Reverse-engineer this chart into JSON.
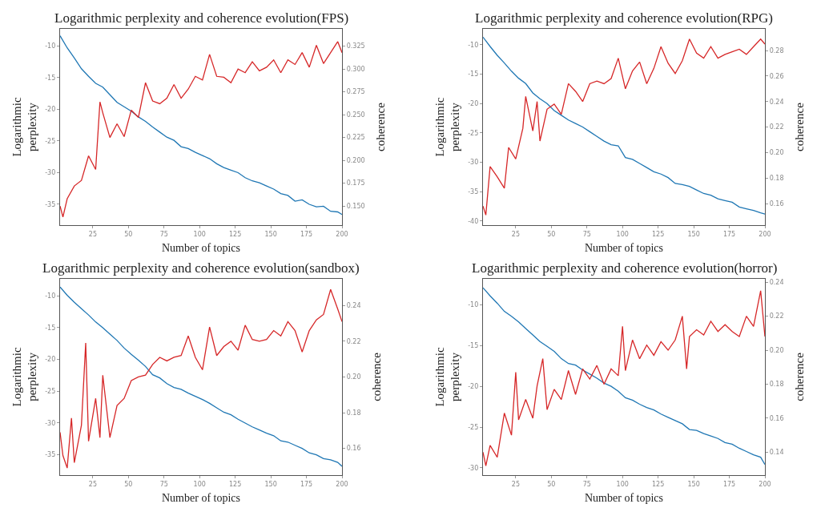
{
  "chart_data": [
    {
      "type": "line",
      "title": "Logarithmic perplexity and coherence evolution(FPS)",
      "xlabel": "Number of topics",
      "ylabel": "Logarithmic\nperplexity",
      "y2label": "coherence",
      "xlim": [
        2,
        200
      ],
      "xticks": [
        25,
        50,
        75,
        100,
        125,
        150,
        175,
        200
      ],
      "ylim": [
        -38.3,
        -7.3
      ],
      "yticks": [
        -35,
        -30,
        -25,
        -20,
        -15,
        -10
      ],
      "y2lim": [
        0.129,
        0.344
      ],
      "y2ticks": [
        {
          "value": 0.15,
          "label": "0.150"
        },
        {
          "value": 0.175,
          "label": "0.175"
        },
        {
          "value": 0.2,
          "label": "0.200"
        },
        {
          "value": 0.225,
          "label": "0.225"
        },
        {
          "value": 0.25,
          "label": "0.250"
        },
        {
          "value": 0.275,
          "label": "0.275"
        },
        {
          "value": 0.3,
          "label": "0.300"
        },
        {
          "value": 0.325,
          "label": "0.325"
        }
      ],
      "marker": "none",
      "line_style": "solid",
      "series": [
        {
          "color": "#1f77b4",
          "axis": "y",
          "x": [
            2,
            7,
            12,
            17,
            22,
            27,
            32,
            37,
            42,
            47,
            52,
            57,
            62,
            67,
            72,
            77,
            82,
            87,
            92,
            97,
            102,
            107,
            112,
            117,
            122,
            127,
            132,
            137,
            142,
            147,
            152,
            157,
            162,
            167,
            172,
            177,
            182,
            187,
            192,
            197,
            200
          ],
          "values": [
            -8.4,
            -10.3,
            -11.9,
            -13.6,
            -14.8,
            -15.9,
            -16.5,
            -17.7,
            -18.9,
            -19.6,
            -20.3,
            -21.2,
            -21.9,
            -22.8,
            -23.6,
            -24.4,
            -24.9,
            -25.9,
            -26.2,
            -26.8,
            -27.3,
            -27.8,
            -28.6,
            -29.2,
            -29.6,
            -30.0,
            -30.8,
            -31.3,
            -31.6,
            -32.1,
            -32.6,
            -33.3,
            -33.6,
            -34.5,
            -34.3,
            -35.0,
            -35.4,
            -35.3,
            -36.1,
            -36.2,
            -36.6
          ]
        },
        {
          "color": "#d62728",
          "axis": "y2",
          "x": [
            2,
            4,
            7,
            12,
            17,
            22,
            27,
            30,
            32,
            37,
            42,
            47,
            52,
            57,
            62,
            67,
            72,
            77,
            82,
            87,
            92,
            97,
            102,
            107,
            112,
            117,
            122,
            127,
            132,
            137,
            142,
            147,
            152,
            157,
            162,
            167,
            172,
            177,
            182,
            187,
            192,
            197,
            200
          ],
          "values": [
            0.15,
            0.138,
            0.158,
            0.172,
            0.178,
            0.205,
            0.19,
            0.264,
            0.252,
            0.225,
            0.24,
            0.226,
            0.255,
            0.247,
            0.285,
            0.265,
            0.262,
            0.268,
            0.283,
            0.268,
            0.278,
            0.292,
            0.288,
            0.316,
            0.292,
            0.291,
            0.285,
            0.3,
            0.296,
            0.308,
            0.298,
            0.302,
            0.31,
            0.296,
            0.31,
            0.305,
            0.318,
            0.302,
            0.326,
            0.306,
            0.318,
            0.33,
            0.318
          ]
        }
      ]
    },
    {
      "type": "line",
      "title": "Logarithmic perplexity and coherence evolution(RPG)",
      "xlabel": "Number of topics",
      "ylabel": "Logarithmic\nperplexity",
      "y2label": "coherence",
      "xlim": [
        2,
        200
      ],
      "xticks": [
        25,
        50,
        75,
        100,
        125,
        150,
        175,
        200
      ],
      "ylim": [
        -40.7,
        -7.3
      ],
      "yticks": [
        -40,
        -35,
        -30,
        -25,
        -20,
        -15,
        -10
      ],
      "y2lim": [
        0.143,
        0.297
      ],
      "y2ticks": [
        {
          "value": 0.16,
          "label": "0.16"
        },
        {
          "value": 0.18,
          "label": "0.18"
        },
        {
          "value": 0.2,
          "label": "0.20"
        },
        {
          "value": 0.22,
          "label": "0.22"
        },
        {
          "value": 0.24,
          "label": "0.24"
        },
        {
          "value": 0.26,
          "label": "0.26"
        },
        {
          "value": 0.28,
          "label": "0.28"
        }
      ],
      "marker": "none",
      "line_style": "solid",
      "series": [
        {
          "color": "#1f77b4",
          "axis": "y",
          "x": [
            2,
            7,
            12,
            17,
            22,
            27,
            32,
            37,
            42,
            47,
            52,
            57,
            62,
            67,
            72,
            77,
            82,
            87,
            92,
            97,
            102,
            107,
            112,
            117,
            122,
            127,
            132,
            137,
            142,
            147,
            152,
            157,
            162,
            167,
            172,
            177,
            182,
            187,
            192,
            197,
            200
          ],
          "values": [
            -8.7,
            -10.3,
            -11.8,
            -13.1,
            -14.5,
            -15.7,
            -16.6,
            -18.2,
            -19.2,
            -20.0,
            -21.2,
            -22.0,
            -22.8,
            -23.4,
            -24.0,
            -24.8,
            -25.6,
            -26.4,
            -27.0,
            -27.2,
            -29.2,
            -29.5,
            -30.2,
            -30.9,
            -31.6,
            -32.0,
            -32.6,
            -33.6,
            -33.8,
            -34.1,
            -34.7,
            -35.3,
            -35.6,
            -36.2,
            -36.5,
            -36.8,
            -37.6,
            -37.9,
            -38.2,
            -38.6,
            -38.8
          ]
        },
        {
          "color": "#d62728",
          "axis": "y2",
          "x": [
            2,
            4,
            7,
            12,
            17,
            20,
            25,
            30,
            32,
            37,
            40,
            42,
            47,
            52,
            57,
            62,
            67,
            72,
            77,
            82,
            87,
            92,
            97,
            102,
            107,
            112,
            117,
            122,
            127,
            132,
            137,
            142,
            147,
            152,
            157,
            162,
            167,
            172,
            177,
            182,
            187,
            192,
            197,
            200
          ],
          "values": [
            0.158,
            0.151,
            0.189,
            0.181,
            0.172,
            0.204,
            0.195,
            0.219,
            0.244,
            0.217,
            0.24,
            0.209,
            0.234,
            0.238,
            0.23,
            0.254,
            0.248,
            0.24,
            0.254,
            0.256,
            0.254,
            0.258,
            0.274,
            0.25,
            0.264,
            0.271,
            0.254,
            0.266,
            0.283,
            0.27,
            0.262,
            0.272,
            0.289,
            0.278,
            0.274,
            0.283,
            0.274,
            0.277,
            0.279,
            0.281,
            0.277,
            0.283,
            0.289,
            0.285
          ]
        }
      ]
    },
    {
      "type": "line",
      "title": "Logarithmic perplexity and coherence evolution(sandbox)",
      "xlabel": "Number of topics",
      "ylabel": "Logarithmic\nperplexity",
      "y2label": "coherence",
      "xlim": [
        2,
        200
      ],
      "xticks": [
        25,
        50,
        75,
        100,
        125,
        150,
        175,
        200
      ],
      "ylim": [
        -38.2,
        -7.3
      ],
      "yticks": [
        -35,
        -30,
        -25,
        -20,
        -15,
        -10
      ],
      "y2lim": [
        0.145,
        0.255
      ],
      "y2ticks": [
        {
          "value": 0.16,
          "label": "0.16"
        },
        {
          "value": 0.18,
          "label": "0.18"
        },
        {
          "value": 0.2,
          "label": "0.20"
        },
        {
          "value": 0.22,
          "label": "0.22"
        },
        {
          "value": 0.24,
          "label": "0.24"
        }
      ],
      "marker": "none",
      "line_style": "solid",
      "series": [
        {
          "color": "#1f77b4",
          "axis": "y",
          "x": [
            2,
            7,
            12,
            17,
            22,
            27,
            32,
            37,
            42,
            47,
            52,
            57,
            62,
            67,
            72,
            77,
            82,
            87,
            92,
            97,
            102,
            107,
            112,
            117,
            122,
            127,
            132,
            137,
            142,
            147,
            152,
            157,
            162,
            167,
            172,
            177,
            182,
            187,
            192,
            197,
            200
          ],
          "values": [
            -8.6,
            -9.9,
            -11.0,
            -12.0,
            -13.0,
            -14.1,
            -15.0,
            -16.0,
            -17.0,
            -18.2,
            -19.2,
            -20.1,
            -21.1,
            -22.4,
            -22.9,
            -23.8,
            -24.4,
            -24.7,
            -25.3,
            -25.8,
            -26.3,
            -26.9,
            -27.6,
            -28.3,
            -28.7,
            -29.4,
            -30.0,
            -30.6,
            -31.1,
            -31.6,
            -32.0,
            -32.8,
            -33.0,
            -33.5,
            -34.0,
            -34.7,
            -35.0,
            -35.6,
            -35.8,
            -36.2,
            -36.8
          ]
        },
        {
          "color": "#d62728",
          "axis": "y2",
          "x": [
            2,
            4,
            7,
            10,
            12,
            17,
            20,
            22,
            27,
            30,
            32,
            37,
            42,
            47,
            52,
            57,
            62,
            67,
            72,
            77,
            82,
            87,
            92,
            97,
            102,
            107,
            112,
            117,
            122,
            127,
            132,
            137,
            142,
            147,
            152,
            157,
            162,
            167,
            172,
            177,
            182,
            187,
            192,
            197,
            200
          ],
          "values": [
            0.169,
            0.156,
            0.149,
            0.177,
            0.152,
            0.173,
            0.219,
            0.164,
            0.188,
            0.166,
            0.201,
            0.166,
            0.184,
            0.188,
            0.198,
            0.2,
            0.201,
            0.207,
            0.211,
            0.209,
            0.211,
            0.212,
            0.223,
            0.211,
            0.204,
            0.228,
            0.212,
            0.217,
            0.22,
            0.215,
            0.229,
            0.221,
            0.22,
            0.221,
            0.226,
            0.223,
            0.231,
            0.226,
            0.214,
            0.226,
            0.232,
            0.235,
            0.249,
            0.238,
            0.231
          ]
        }
      ]
    },
    {
      "type": "line",
      "title": "Logarithmic perplexity and coherence evolution(horror)",
      "xlabel": "Number of topics",
      "ylabel": "Logarithmic\nperplexity",
      "y2label": "coherence",
      "xlim": [
        2,
        200
      ],
      "xticks": [
        25,
        50,
        75,
        100,
        125,
        150,
        175,
        200
      ],
      "ylim": [
        -30.9,
        -6.8
      ],
      "yticks": [
        -30,
        -25,
        -20,
        -15,
        -10
      ],
      "y2lim": [
        0.1265,
        0.242
      ],
      "y2ticks": [
        {
          "value": 0.14,
          "label": "0.14"
        },
        {
          "value": 0.16,
          "label": "0.16"
        },
        {
          "value": 0.18,
          "label": "0.18"
        },
        {
          "value": 0.2,
          "label": "0.20"
        },
        {
          "value": 0.22,
          "label": "0.22"
        },
        {
          "value": 0.24,
          "label": "0.24"
        }
      ],
      "marker": "none",
      "line_style": "solid",
      "series": [
        {
          "color": "#1f77b4",
          "axis": "y",
          "x": [
            2,
            7,
            12,
            17,
            22,
            27,
            32,
            37,
            42,
            47,
            52,
            57,
            62,
            67,
            72,
            77,
            82,
            87,
            92,
            97,
            102,
            107,
            112,
            117,
            122,
            127,
            132,
            137,
            142,
            147,
            152,
            157,
            162,
            167,
            172,
            177,
            182,
            187,
            192,
            197,
            200
          ],
          "values": [
            -7.9,
            -8.9,
            -9.8,
            -10.8,
            -11.4,
            -12.1,
            -12.9,
            -13.7,
            -14.5,
            -15.1,
            -15.7,
            -16.6,
            -17.2,
            -17.4,
            -18.0,
            -18.5,
            -19.0,
            -19.6,
            -20.0,
            -20.6,
            -21.4,
            -21.7,
            -22.2,
            -22.6,
            -22.9,
            -23.4,
            -23.8,
            -24.2,
            -24.6,
            -25.3,
            -25.4,
            -25.8,
            -26.1,
            -26.4,
            -26.9,
            -27.1,
            -27.6,
            -28.0,
            -28.4,
            -28.7,
            -29.6
          ]
        },
        {
          "color": "#d62728",
          "axis": "y2",
          "x": [
            2,
            4,
            7,
            12,
            17,
            22,
            25,
            27,
            32,
            37,
            40,
            44,
            47,
            52,
            57,
            62,
            67,
            72,
            77,
            82,
            87,
            92,
            97,
            100,
            102,
            107,
            112,
            117,
            122,
            127,
            132,
            137,
            142,
            145,
            147,
            152,
            157,
            162,
            167,
            172,
            177,
            182,
            187,
            192,
            197,
            200
          ],
          "values": [
            0.14,
            0.132,
            0.144,
            0.137,
            0.163,
            0.15,
            0.187,
            0.159,
            0.171,
            0.16,
            0.179,
            0.195,
            0.165,
            0.177,
            0.171,
            0.188,
            0.174,
            0.189,
            0.183,
            0.191,
            0.18,
            0.189,
            0.185,
            0.214,
            0.188,
            0.206,
            0.195,
            0.203,
            0.197,
            0.205,
            0.2,
            0.206,
            0.22,
            0.189,
            0.208,
            0.212,
            0.209,
            0.217,
            0.211,
            0.215,
            0.211,
            0.208,
            0.22,
            0.214,
            0.235,
            0.208
          ]
        }
      ]
    }
  ]
}
